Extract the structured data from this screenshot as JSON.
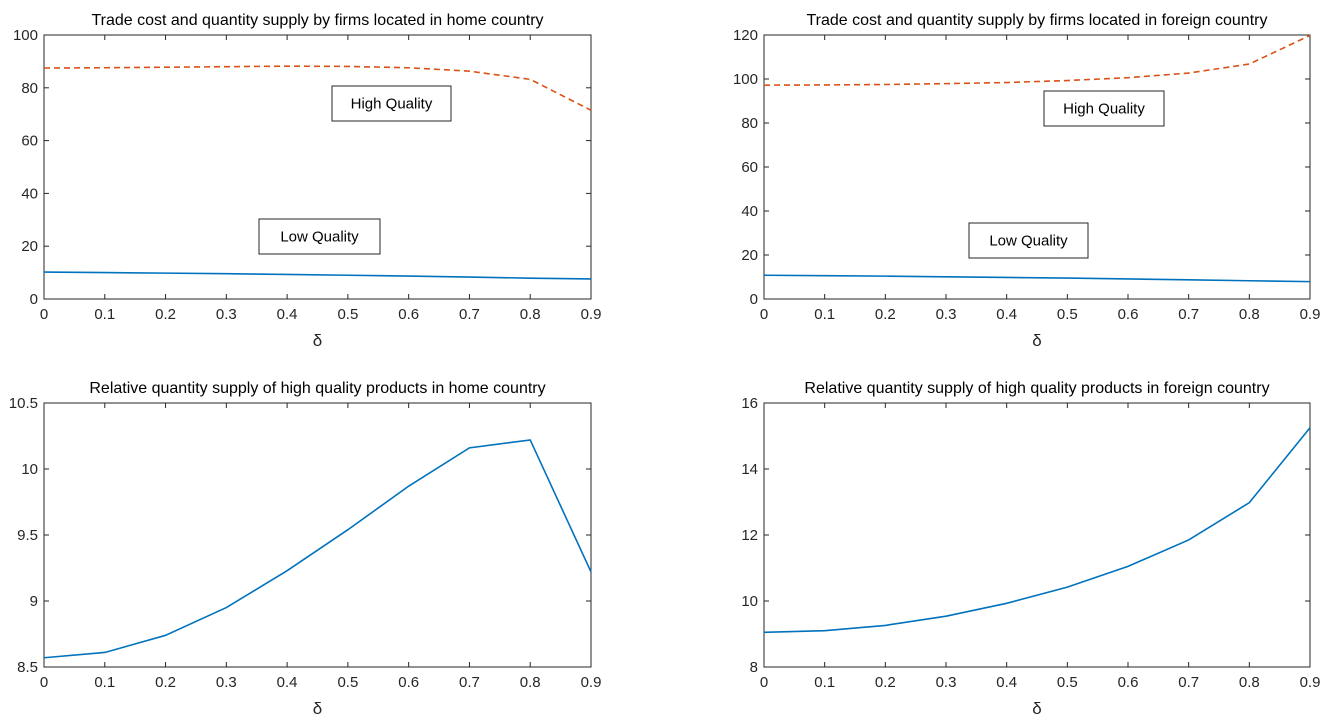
{
  "chart_data": [
    {
      "type": "line",
      "title": "Trade cost and quantity supply by firms located in home country",
      "xlabel": "δ",
      "ylabel": "",
      "xlim": [
        0,
        0.9
      ],
      "ylim": [
        0,
        100
      ],
      "xticks": [
        "0",
        "0.1",
        "0.2",
        "0.3",
        "0.4",
        "0.5",
        "0.6",
        "0.7",
        "0.8",
        "0.9"
      ],
      "yticks": [
        "0",
        "20",
        "40",
        "60",
        "80",
        "100"
      ],
      "x": [
        0,
        0.1,
        0.2,
        0.3,
        0.4,
        0.5,
        0.6,
        0.7,
        0.8,
        0.9
      ],
      "series": [
        {
          "values": [
            87.5,
            87.6,
            87.8,
            88.0,
            88.2,
            88.1,
            87.6,
            86.3,
            83.2,
            71.5
          ],
          "color": "#D95319",
          "dash": "dashed"
        },
        {
          "values": [
            10.2,
            10.0,
            9.8,
            9.6,
            9.3,
            9.0,
            8.7,
            8.3,
            7.9,
            7.6
          ],
          "color": "#0072BD",
          "dash": "solid"
        }
      ],
      "annotations": [
        {
          "text": "High Quality"
        },
        {
          "text": "Low Quality"
        }
      ],
      "grid": false
    },
    {
      "type": "line",
      "title": "Trade cost and quantity supply by firms located in foreign country",
      "xlabel": "δ",
      "ylabel": "",
      "xlim": [
        0,
        0.9
      ],
      "ylim": [
        0,
        120
      ],
      "xticks": [
        "0",
        "0.1",
        "0.2",
        "0.3",
        "0.4",
        "0.5",
        "0.6",
        "0.7",
        "0.8",
        "0.9"
      ],
      "yticks": [
        "0",
        "20",
        "40",
        "60",
        "80",
        "100",
        "120"
      ],
      "x": [
        0,
        0.1,
        0.2,
        0.3,
        0.4,
        0.5,
        0.6,
        0.7,
        0.8,
        0.9
      ],
      "series": [
        {
          "values": [
            97.2,
            97.3,
            97.5,
            97.9,
            98.4,
            99.3,
            100.6,
            102.7,
            106.8,
            119.8
          ],
          "color": "#D95319",
          "dash": "dashed"
        },
        {
          "values": [
            10.8,
            10.6,
            10.4,
            10.1,
            9.8,
            9.5,
            9.1,
            8.7,
            8.3,
            7.9
          ],
          "color": "#0072BD",
          "dash": "solid"
        }
      ],
      "annotations": [
        {
          "text": "High Quality"
        },
        {
          "text": "Low Quality"
        }
      ],
      "grid": false
    },
    {
      "type": "line",
      "title": "Relative  quantity supply of high quality products in home country",
      "xlabel": "δ",
      "ylabel": "",
      "xlim": [
        0,
        0.9
      ],
      "ylim": [
        8.5,
        10.5
      ],
      "xticks": [
        "0",
        "0.1",
        "0.2",
        "0.3",
        "0.4",
        "0.5",
        "0.6",
        "0.7",
        "0.8",
        "0.9"
      ],
      "yticks": [
        "8.5",
        "9",
        "9.5",
        "10",
        "10.5"
      ],
      "x": [
        0,
        0.1,
        0.2,
        0.3,
        0.4,
        0.5,
        0.6,
        0.7,
        0.8,
        0.9
      ],
      "series": [
        {
          "values": [
            8.57,
            8.61,
            8.74,
            8.95,
            9.23,
            9.54,
            9.87,
            10.16,
            10.22,
            9.22
          ],
          "color": "#0072BD",
          "dash": "solid"
        }
      ],
      "annotations": [],
      "grid": false
    },
    {
      "type": "line",
      "title": "Relative  quantity supply of high quality products in foreign country",
      "xlabel": "δ",
      "ylabel": "",
      "xlim": [
        0,
        0.9
      ],
      "ylim": [
        8,
        16
      ],
      "xticks": [
        "0",
        "0.1",
        "0.2",
        "0.3",
        "0.4",
        "0.5",
        "0.6",
        "0.7",
        "0.8",
        "0.9"
      ],
      "yticks": [
        "8",
        "10",
        "12",
        "14",
        "16"
      ],
      "x": [
        0,
        0.1,
        0.2,
        0.3,
        0.4,
        0.5,
        0.6,
        0.7,
        0.8,
        0.9
      ],
      "series": [
        {
          "values": [
            9.05,
            9.1,
            9.26,
            9.54,
            9.93,
            10.42,
            11.05,
            11.85,
            12.98,
            15.25
          ],
          "color": "#0072BD",
          "dash": "solid"
        }
      ],
      "annotations": [],
      "grid": false
    }
  ]
}
